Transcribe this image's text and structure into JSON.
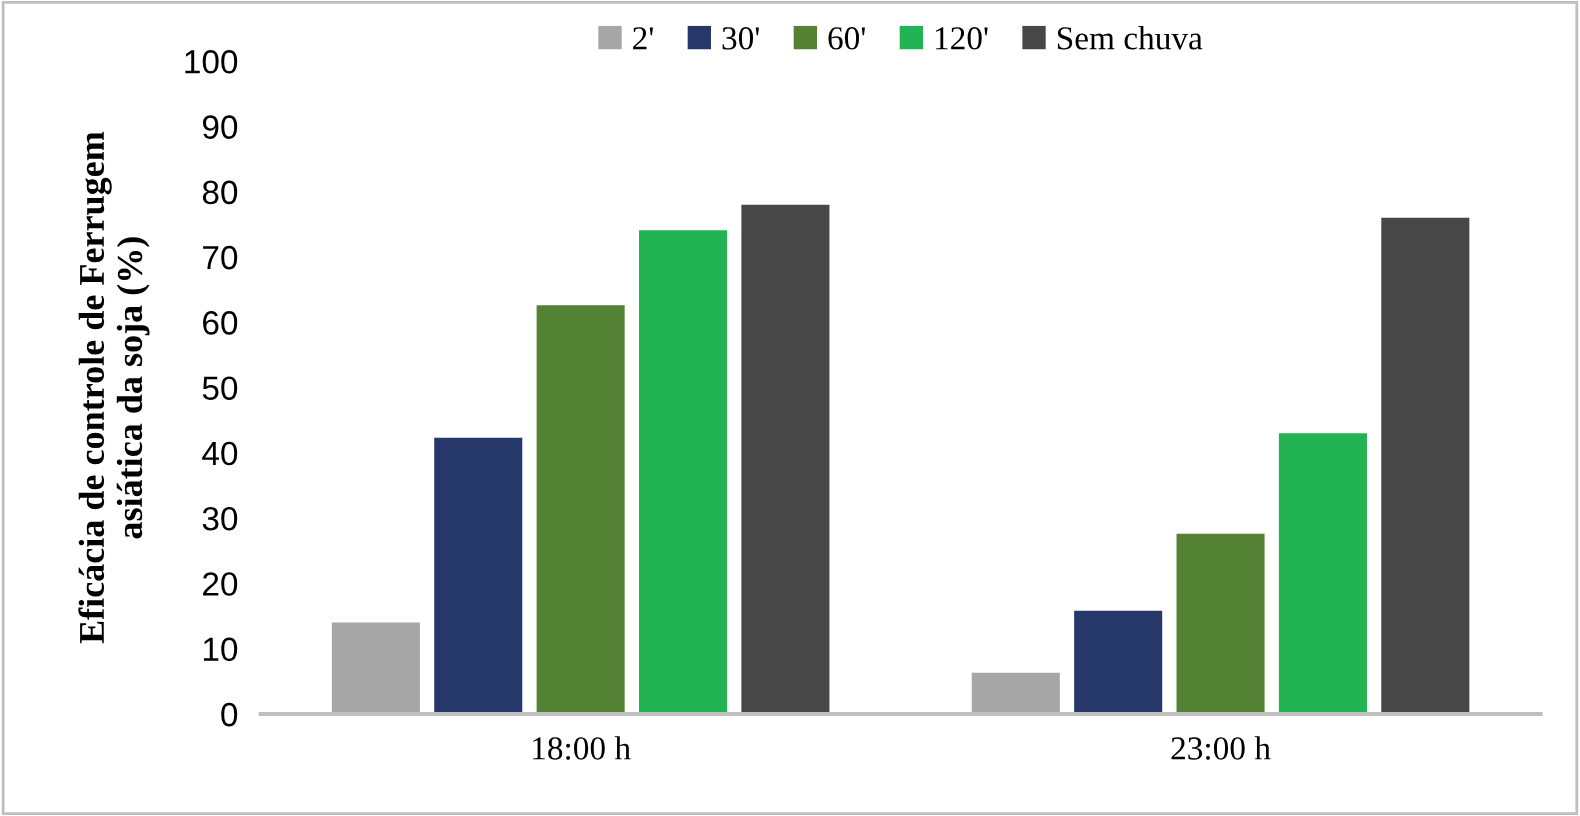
{
  "chart_data": {
    "type": "bar",
    "ylabel": "Eficácia de controle de Ferrugem\nasiática da soja (%)",
    "categories": [
      "18:00 h",
      "23:00 h"
    ],
    "series": [
      {
        "name": "2'",
        "color": "#a6a6a6",
        "values": [
          14,
          6.3
        ]
      },
      {
        "name": "30'",
        "color": "#253869",
        "values": [
          42.3,
          15.8
        ]
      },
      {
        "name": "60'",
        "color": "#548235",
        "values": [
          62.6,
          27.6
        ]
      },
      {
        "name": "120'",
        "color": "#22b353",
        "values": [
          74.1,
          43
        ]
      },
      {
        "name": "Sem chuva",
        "color": "#474747",
        "values": [
          78,
          76
        ]
      }
    ],
    "ylim": [
      0,
      100
    ],
    "yticks": [
      0,
      10,
      20,
      30,
      40,
      50,
      60,
      70,
      80,
      90,
      100
    ],
    "grid": false,
    "legend": "top"
  }
}
